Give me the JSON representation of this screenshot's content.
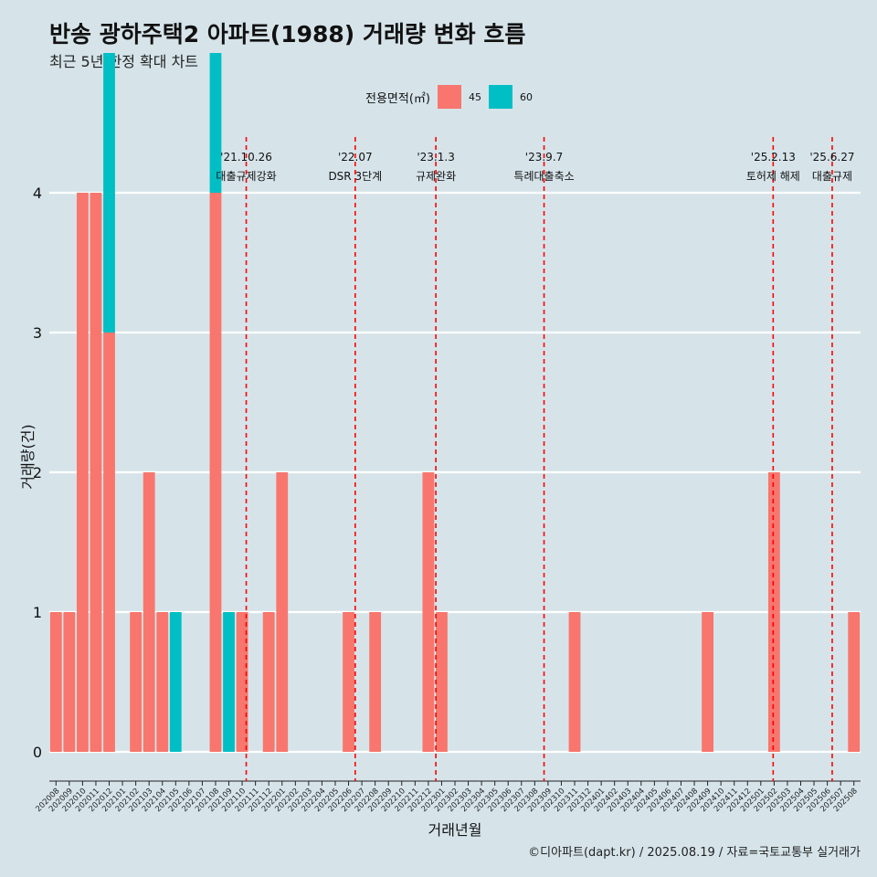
{
  "title": "반송 광하주택2 아파트(1988) 거래량 변화 흐름",
  "subtitle": "최근 5년 한정 확대 차트",
  "caption": "©디아파트(dapt.kr) / 2025.08.19 / 자료=국토교통부 실거래가",
  "legend": {
    "title": "전용면적(㎡)",
    "items": [
      {
        "label": "45",
        "color": "#f8766d"
      },
      {
        "label": "60",
        "color": "#00bfc4"
      }
    ]
  },
  "chart_data": {
    "type": "bar",
    "xlabel": "거래년월",
    "ylabel": "거래량(건)",
    "ylim": [
      0,
      4
    ],
    "yticks": [
      0,
      1,
      2,
      3,
      4
    ],
    "grid": true,
    "legend_position": "top",
    "categories": [
      "202008",
      "202009",
      "202010",
      "202011",
      "202012",
      "202101",
      "202102",
      "202103",
      "202104",
      "202105",
      "202106",
      "202107",
      "202108",
      "202109",
      "202110",
      "202111",
      "202112",
      "202201",
      "202202",
      "202203",
      "202204",
      "202205",
      "202206",
      "202207",
      "202208",
      "202209",
      "202210",
      "202211",
      "202212",
      "202301",
      "202302",
      "202303",
      "202304",
      "202305",
      "202306",
      "202307",
      "202308",
      "202309",
      "202310",
      "202311",
      "202312",
      "202401",
      "202402",
      "202403",
      "202404",
      "202405",
      "202406",
      "202407",
      "202408",
      "202409",
      "202410",
      "202411",
      "202412",
      "202501",
      "202502",
      "202503",
      "202504",
      "202505",
      "202506",
      "202507",
      "202508"
    ],
    "series": [
      {
        "name": "45",
        "color": "#f8766d",
        "values": [
          1,
          1,
          4,
          4,
          3,
          0,
          1,
          2,
          1,
          0,
          0,
          0,
          4,
          0,
          1,
          0,
          1,
          2,
          0,
          0,
          0,
          0,
          1,
          0,
          1,
          0,
          0,
          0,
          2,
          1,
          0,
          0,
          0,
          0,
          0,
          0,
          0,
          0,
          0,
          1,
          0,
          0,
          0,
          0,
          0,
          0,
          0,
          0,
          0,
          1,
          0,
          0,
          0,
          0,
          2,
          0,
          0,
          0,
          0,
          0,
          1
        ]
      },
      {
        "name": "60",
        "color": "#00bfc4",
        "values": [
          0,
          0,
          0,
          0,
          2,
          0,
          0,
          0,
          0,
          1,
          0,
          0,
          1,
          1,
          0,
          0,
          0,
          0,
          0,
          0,
          0,
          0,
          0,
          0,
          0,
          0,
          0,
          0,
          0,
          0,
          0,
          0,
          0,
          0,
          0,
          0,
          0,
          0,
          0,
          0,
          0,
          0,
          0,
          0,
          0,
          0,
          0,
          0,
          0,
          0,
          0,
          0,
          0,
          0,
          0,
          0,
          0,
          0,
          0,
          0,
          0
        ]
      }
    ],
    "annotations": [
      {
        "x": "2021-10-26",
        "line1": "'21.10.26",
        "line2": "대출규제강화"
      },
      {
        "x": "2022-07-01",
        "line1": "'22.07",
        "line2": "DSR 3단계"
      },
      {
        "x": "2023-01-03",
        "line1": "'23.1.3",
        "line2": "규제완화"
      },
      {
        "x": "2023-09-07",
        "line1": "'23.9.7",
        "line2": "특례대출축소"
      },
      {
        "x": "2025-02-13",
        "line1": "'25.2.13",
        "line2": "토허제 해제"
      },
      {
        "x": "2025-06-27",
        "line1": "'25.6.27",
        "line2": "대출규제"
      }
    ]
  }
}
